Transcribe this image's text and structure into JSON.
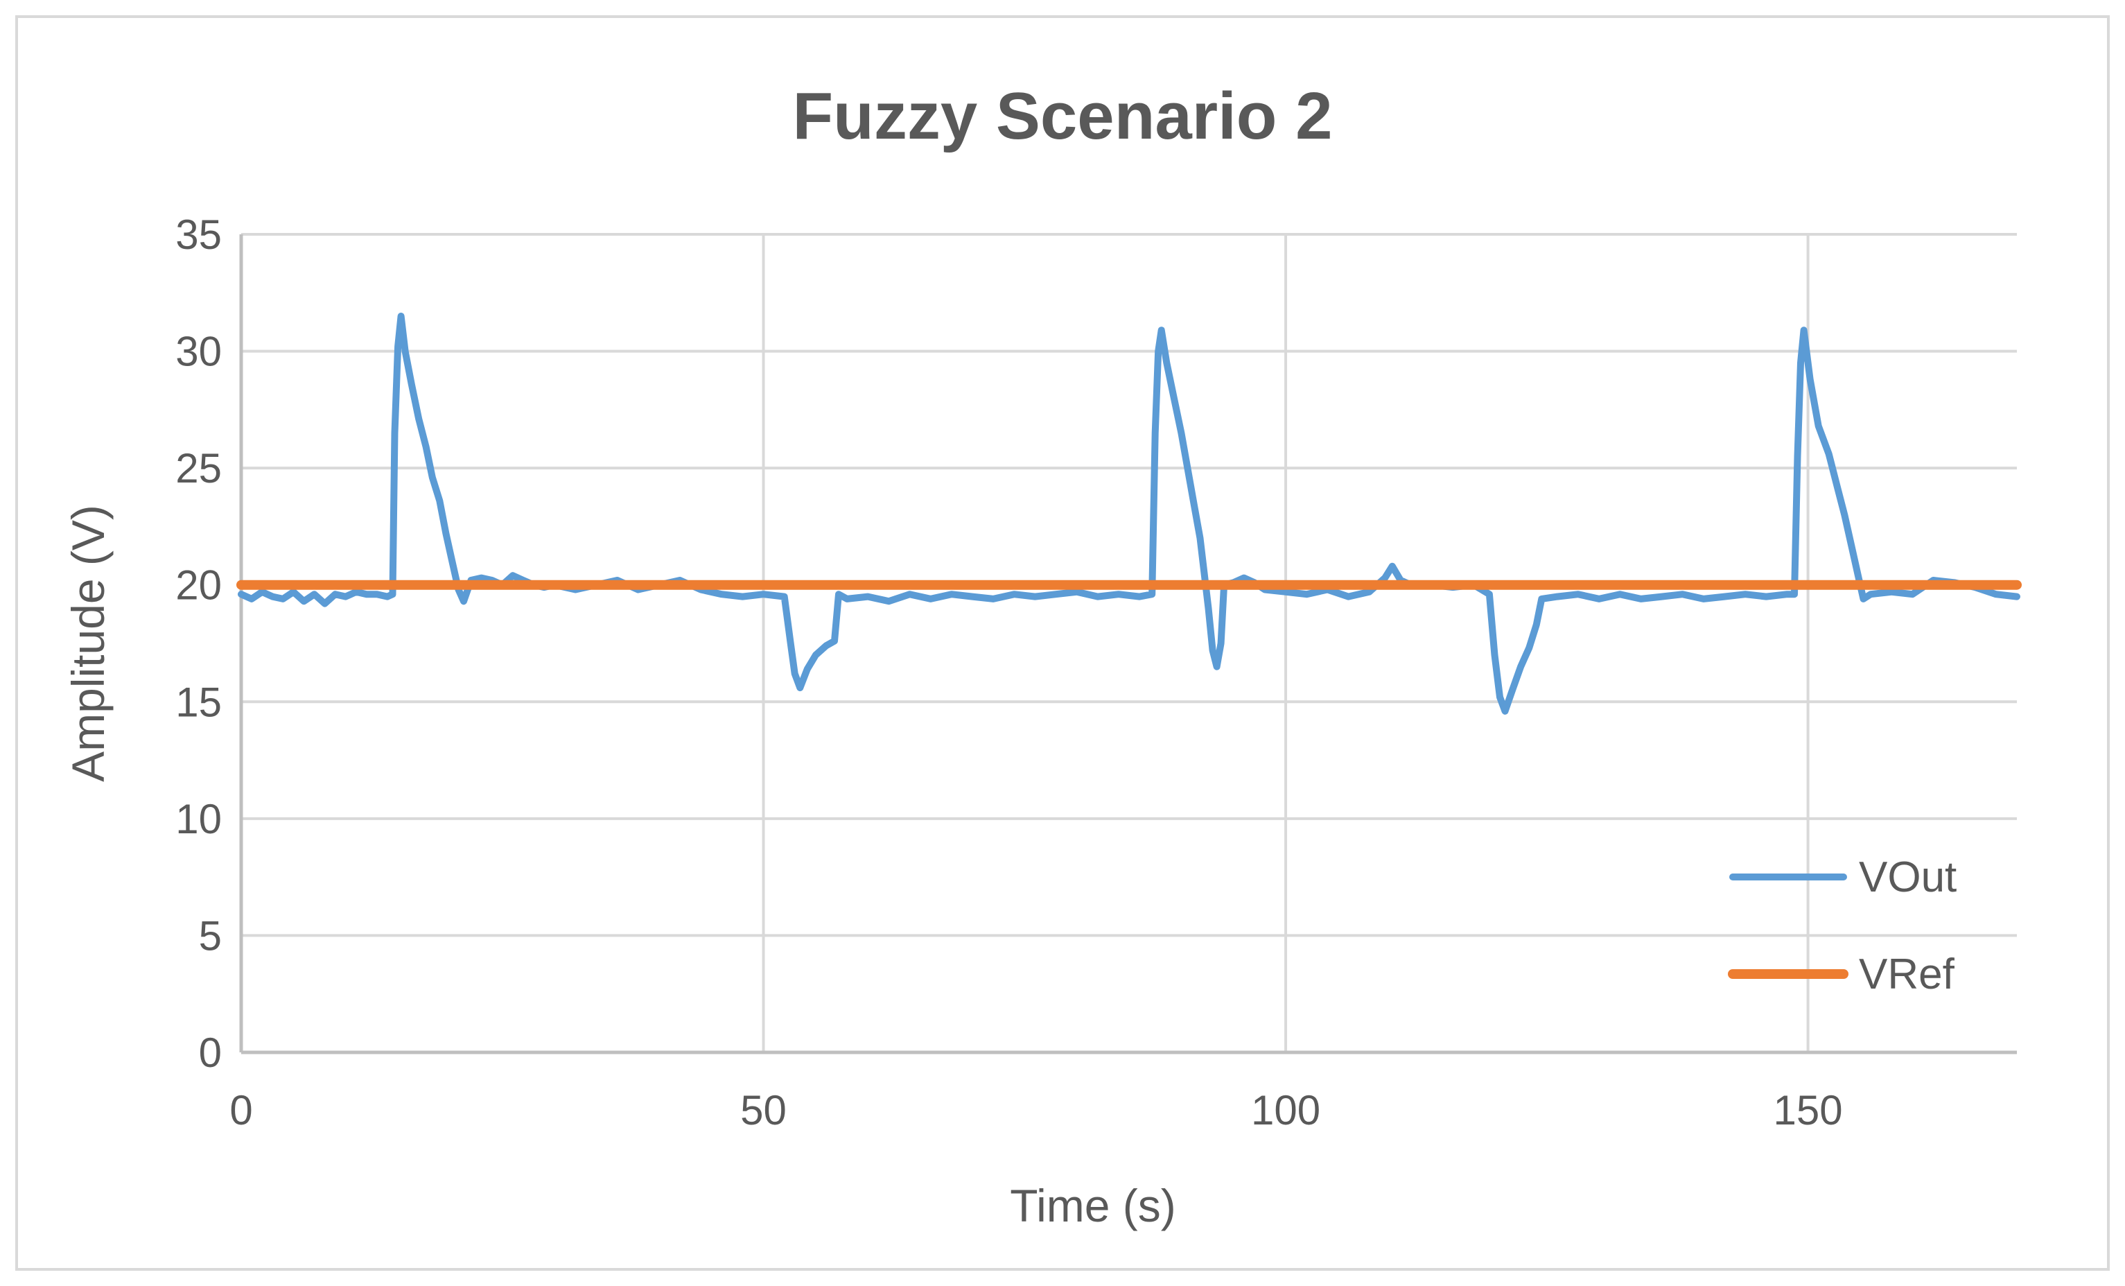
{
  "chart_data": {
    "type": "line",
    "title": "Fuzzy Scenario 2",
    "xlabel": "Time (s)",
    "ylabel": "Amplitude (V)",
    "xlim": [
      0,
      170
    ],
    "ylim": [
      0,
      35
    ],
    "x_ticks": [
      0,
      50,
      100,
      150
    ],
    "y_ticks": [
      0,
      5,
      10,
      15,
      20,
      25,
      30,
      35
    ],
    "grid": true,
    "legend_position": "bottom-right",
    "colors": {
      "VOut": "#5b9bd5",
      "VRef": "#ed7d31",
      "grid": "#d9d9d9",
      "axis": "#bfbfbf",
      "frame": "#d9d9d9",
      "text": "#595959"
    },
    "series": [
      {
        "name": "VOut",
        "points": [
          [
            0,
            19.6
          ],
          [
            1,
            19.4
          ],
          [
            2,
            19.7
          ],
          [
            3,
            19.5
          ],
          [
            4,
            19.4
          ],
          [
            5,
            19.7
          ],
          [
            6,
            19.3
          ],
          [
            7,
            19.6
          ],
          [
            8,
            19.2
          ],
          [
            9,
            19.6
          ],
          [
            10,
            19.5
          ],
          [
            11,
            19.7
          ],
          [
            12,
            19.6
          ],
          [
            13,
            19.6
          ],
          [
            14,
            19.5
          ],
          [
            14.5,
            19.6
          ],
          [
            14.7,
            26.5
          ],
          [
            15,
            30.2
          ],
          [
            15.3,
            31.5
          ],
          [
            15.7,
            30.0
          ],
          [
            16.3,
            28.6
          ],
          [
            17,
            27.1
          ],
          [
            17.7,
            25.9
          ],
          [
            18.3,
            24.6
          ],
          [
            19,
            23.6
          ],
          [
            19.6,
            22.2
          ],
          [
            20.2,
            21.0
          ],
          [
            20.8,
            19.8
          ],
          [
            21.3,
            19.3
          ],
          [
            22,
            20.2
          ],
          [
            23,
            20.3
          ],
          [
            24,
            20.2
          ],
          [
            25,
            20.0
          ],
          [
            26,
            20.4
          ],
          [
            27,
            20.2
          ],
          [
            28,
            20.0
          ],
          [
            29,
            19.9
          ],
          [
            30,
            20.0
          ],
          [
            32,
            19.8
          ],
          [
            34,
            20.0
          ],
          [
            36,
            20.2
          ],
          [
            38,
            19.8
          ],
          [
            40,
            20.0
          ],
          [
            42,
            20.2
          ],
          [
            44,
            19.8
          ],
          [
            46,
            19.6
          ],
          [
            48,
            19.5
          ],
          [
            50,
            19.6
          ],
          [
            52,
            19.5
          ],
          [
            52.6,
            17.5
          ],
          [
            53,
            16.2
          ],
          [
            53.5,
            15.6
          ],
          [
            54.2,
            16.4
          ],
          [
            55,
            17.0
          ],
          [
            56,
            17.4
          ],
          [
            56.8,
            17.6
          ],
          [
            57.2,
            19.6
          ],
          [
            58,
            19.4
          ],
          [
            60,
            19.5
          ],
          [
            62,
            19.3
          ],
          [
            64,
            19.6
          ],
          [
            66,
            19.4
          ],
          [
            68,
            19.6
          ],
          [
            70,
            19.5
          ],
          [
            72,
            19.4
          ],
          [
            74,
            19.6
          ],
          [
            76,
            19.5
          ],
          [
            78,
            19.6
          ],
          [
            80,
            19.7
          ],
          [
            82,
            19.5
          ],
          [
            84,
            19.6
          ],
          [
            86,
            19.5
          ],
          [
            87.2,
            19.6
          ],
          [
            87.5,
            26.5
          ],
          [
            87.8,
            30.0
          ],
          [
            88.1,
            30.9
          ],
          [
            88.6,
            29.5
          ],
          [
            89.3,
            28.0
          ],
          [
            90,
            26.5
          ],
          [
            90.6,
            25.0
          ],
          [
            91.2,
            23.5
          ],
          [
            91.8,
            22.0
          ],
          [
            92.2,
            20.5
          ],
          [
            92.6,
            19.0
          ],
          [
            93,
            17.2
          ],
          [
            93.4,
            16.5
          ],
          [
            93.8,
            17.5
          ],
          [
            94.1,
            20.0
          ],
          [
            95,
            20.1
          ],
          [
            96,
            20.3
          ],
          [
            97,
            20.1
          ],
          [
            98,
            19.8
          ],
          [
            100,
            19.7
          ],
          [
            102,
            19.6
          ],
          [
            104,
            19.8
          ],
          [
            106,
            19.5
          ],
          [
            108,
            19.7
          ],
          [
            109.5,
            20.3
          ],
          [
            110.2,
            20.8
          ],
          [
            111,
            20.2
          ],
          [
            112,
            20.0
          ],
          [
            114,
            20.0
          ],
          [
            116,
            19.9
          ],
          [
            118,
            20.0
          ],
          [
            119.5,
            19.6
          ],
          [
            120,
            17.0
          ],
          [
            120.5,
            15.2
          ],
          [
            121,
            14.6
          ],
          [
            121.7,
            15.5
          ],
          [
            122.5,
            16.5
          ],
          [
            123.3,
            17.3
          ],
          [
            124,
            18.3
          ],
          [
            124.5,
            19.4
          ],
          [
            126,
            19.5
          ],
          [
            128,
            19.6
          ],
          [
            130,
            19.4
          ],
          [
            132,
            19.6
          ],
          [
            134,
            19.4
          ],
          [
            136,
            19.5
          ],
          [
            138,
            19.6
          ],
          [
            140,
            19.4
          ],
          [
            142,
            19.5
          ],
          [
            144,
            19.6
          ],
          [
            146,
            19.5
          ],
          [
            148,
            19.6
          ],
          [
            148.7,
            19.6
          ],
          [
            149,
            25.5
          ],
          [
            149.3,
            29.5
          ],
          [
            149.6,
            30.9
          ],
          [
            150.2,
            28.8
          ],
          [
            151,
            26.8
          ],
          [
            152,
            25.6
          ],
          [
            152.8,
            24.2
          ],
          [
            153.5,
            23.0
          ],
          [
            154.2,
            21.6
          ],
          [
            154.8,
            20.4
          ],
          [
            155.3,
            19.4
          ],
          [
            156,
            19.6
          ],
          [
            158,
            19.7
          ],
          [
            160,
            19.6
          ],
          [
            162,
            20.2
          ],
          [
            164,
            20.1
          ],
          [
            166,
            19.9
          ],
          [
            168,
            19.6
          ],
          [
            170,
            19.5
          ]
        ]
      },
      {
        "name": "VRef",
        "points": [
          [
            0,
            20
          ],
          [
            170,
            20
          ]
        ]
      }
    ]
  }
}
